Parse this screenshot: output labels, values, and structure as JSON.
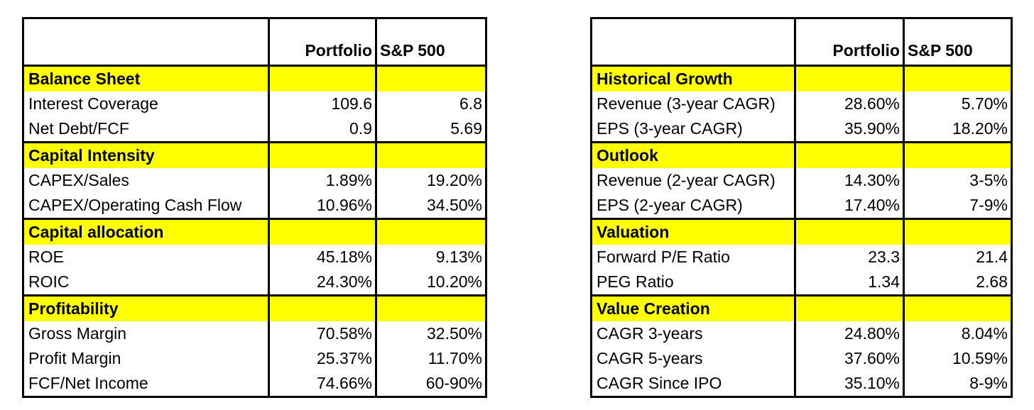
{
  "tables": [
    {
      "headers": [
        "",
        "Portfolio",
        "S&P 500"
      ],
      "sections": [
        {
          "title": "Balance Sheet",
          "rows": [
            {
              "label": "Interest Coverage",
              "portfolio": "109.6",
              "sp500": "6.8"
            },
            {
              "label": "Net Debt/FCF",
              "portfolio": "0.9",
              "sp500": "5.69"
            }
          ]
        },
        {
          "title": "Capital Intensity",
          "rows": [
            {
              "label": "CAPEX/Sales",
              "portfolio": "1.89%",
              "sp500": "19.20%"
            },
            {
              "label": "CAPEX/Operating Cash Flow",
              "portfolio": "10.96%",
              "sp500": "34.50%"
            }
          ]
        },
        {
          "title": "Capital allocation",
          "rows": [
            {
              "label": "ROE",
              "portfolio": "45.18%",
              "sp500": "9.13%"
            },
            {
              "label": "ROIC",
              "portfolio": "24.30%",
              "sp500": "10.20%"
            }
          ]
        },
        {
          "title": "Profitability",
          "rows": [
            {
              "label": "Gross Margin",
              "portfolio": "70.58%",
              "sp500": "32.50%"
            },
            {
              "label": "Profit Margin",
              "portfolio": "25.37%",
              "sp500": "11.70%"
            },
            {
              "label": "FCF/Net Income",
              "portfolio": "74.66%",
              "sp500": "60-90%"
            }
          ]
        }
      ]
    },
    {
      "headers": [
        "",
        "Portfolio",
        "S&P 500"
      ],
      "sections": [
        {
          "title": "Historical Growth",
          "rows": [
            {
              "label": "Revenue (3-year CAGR)",
              "portfolio": "28.60%",
              "sp500": "5.70%"
            },
            {
              "label": "EPS (3-year CAGR)",
              "portfolio": "35.90%",
              "sp500": "18.20%"
            }
          ]
        },
        {
          "title": "Outlook",
          "rows": [
            {
              "label": "Revenue (2-year CAGR)",
              "portfolio": "14.30%",
              "sp500": "3-5%"
            },
            {
              "label": "EPS (2-year CAGR)",
              "portfolio": "17.40%",
              "sp500": "7-9%"
            }
          ]
        },
        {
          "title": "Valuation",
          "rows": [
            {
              "label": "Forward  P/E Ratio",
              "portfolio": "23.3",
              "sp500": "21.4"
            },
            {
              "label": "PEG Ratio",
              "portfolio": "1.34",
              "sp500": "2.68"
            }
          ]
        },
        {
          "title": "Value Creation",
          "rows": [
            {
              "label": "CAGR 3-years",
              "portfolio": "24.80%",
              "sp500": "8.04%"
            },
            {
              "label": "CAGR 5-years",
              "portfolio": "37.60%",
              "sp500": "10.59%"
            },
            {
              "label": "CAGR Since IPO",
              "portfolio": "35.10%",
              "sp500": "8-9%"
            }
          ]
        }
      ]
    }
  ],
  "colors": {
    "section_highlight": "#ffff00",
    "border": "#000000",
    "background": "#ffffff"
  }
}
